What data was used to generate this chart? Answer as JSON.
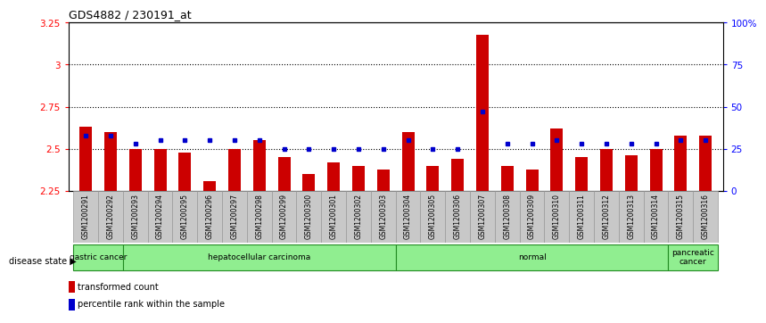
{
  "title": "GDS4882 / 230191_at",
  "samples": [
    "GSM1200291",
    "GSM1200292",
    "GSM1200293",
    "GSM1200294",
    "GSM1200295",
    "GSM1200296",
    "GSM1200297",
    "GSM1200298",
    "GSM1200299",
    "GSM1200300",
    "GSM1200301",
    "GSM1200302",
    "GSM1200303",
    "GSM1200304",
    "GSM1200305",
    "GSM1200306",
    "GSM1200307",
    "GSM1200308",
    "GSM1200309",
    "GSM1200310",
    "GSM1200311",
    "GSM1200312",
    "GSM1200313",
    "GSM1200314",
    "GSM1200315",
    "GSM1200316"
  ],
  "transformed_count": [
    2.63,
    2.6,
    2.5,
    2.5,
    2.48,
    2.31,
    2.5,
    2.55,
    2.45,
    2.35,
    2.42,
    2.4,
    2.38,
    2.6,
    2.4,
    2.44,
    3.18,
    2.4,
    2.38,
    2.62,
    2.45,
    2.5,
    2.46,
    2.5,
    2.58,
    2.58
  ],
  "percentile_rank": [
    33,
    33,
    28,
    30,
    30,
    30,
    30,
    30,
    25,
    25,
    25,
    25,
    25,
    30,
    25,
    25,
    47,
    28,
    28,
    30,
    28,
    28,
    28,
    28,
    30,
    30
  ],
  "ylim_left": [
    2.25,
    3.25
  ],
  "ylim_right": [
    0,
    100
  ],
  "yticks_left": [
    2.25,
    2.5,
    2.75,
    3.0,
    3.25
  ],
  "ytick_labels_left": [
    "2.25",
    "2.5",
    "2.75",
    "3",
    "3.25"
  ],
  "yticks_right": [
    0,
    25,
    50,
    75,
    100
  ],
  "ytick_labels_right": [
    "0",
    "25",
    "50",
    "75",
    "100%"
  ],
  "hlines": [
    2.5,
    2.75,
    3.0
  ],
  "group_boundaries": [
    {
      "label": "gastric cancer",
      "start": 0,
      "end": 2
    },
    {
      "label": "hepatocellular carcinoma",
      "start": 2,
      "end": 13
    },
    {
      "label": "normal",
      "start": 13,
      "end": 24
    },
    {
      "label": "pancreatic\ncancer",
      "start": 24,
      "end": 26
    }
  ],
  "bar_color": "#CC0000",
  "dot_color": "#0000CC",
  "bar_width": 0.5,
  "tick_bg_color": "#C8C8C8",
  "tick_border_color": "#999999",
  "light_green": "#90EE90",
  "dark_green": "#228B22",
  "legend_items": [
    {
      "label": "transformed count",
      "color": "#CC0000"
    },
    {
      "label": "percentile rank within the sample",
      "color": "#0000CC"
    }
  ]
}
